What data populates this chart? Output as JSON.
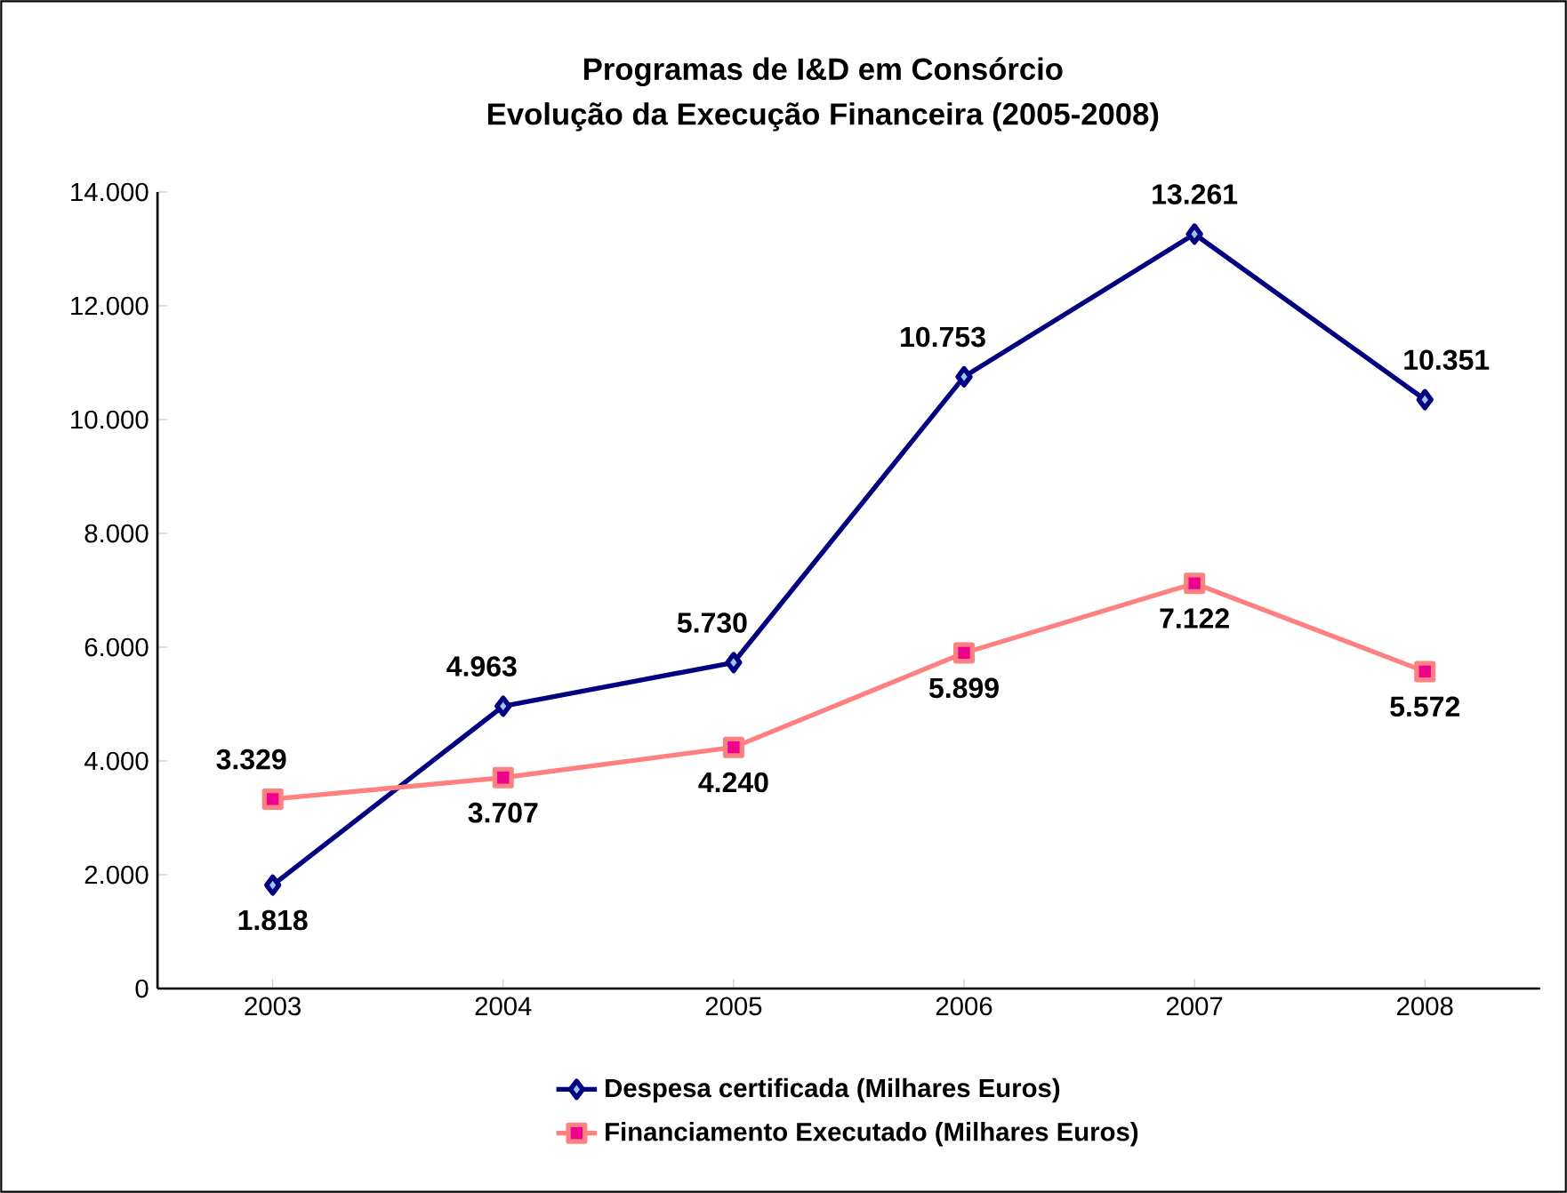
{
  "chart_data": {
    "type": "line",
    "title": "Programas de I&D em Consórcio",
    "subtitle": "Evolução da Execução Financeira (2005-2008)",
    "categories": [
      "2003",
      "2004",
      "2005",
      "2006",
      "2007",
      "2008"
    ],
    "series": [
      {
        "name": "Despesa certificada (Milhares Euros)",
        "color": "#000080",
        "marker": "diamond",
        "values": [
          1818,
          4963,
          5730,
          10753,
          13261,
          10351
        ],
        "value_labels": [
          "1.818",
          "4.963",
          "5.730",
          "10.753",
          "13.261",
          "10.351"
        ]
      },
      {
        "name": "Financiamento Executado (Milhares Euros)",
        "color": "#ff8080",
        "marker": "square",
        "values": [
          3329,
          3707,
          4240,
          5899,
          7122,
          5572
        ],
        "value_labels": [
          "3.329",
          "3.707",
          "4.240",
          "5.899",
          "7.122",
          "5.572"
        ]
      }
    ],
    "ylim": [
      0,
      14000
    ],
    "yticks": [
      {
        "value": 0,
        "label": "0"
      },
      {
        "value": 2000,
        "label": "2.000"
      },
      {
        "value": 4000,
        "label": "4.000"
      },
      {
        "value": 6000,
        "label": "6.000"
      },
      {
        "value": 8000,
        "label": "8.000"
      },
      {
        "value": 10000,
        "label": "10.000"
      },
      {
        "value": 12000,
        "label": "12.000"
      },
      {
        "value": 14000,
        "label": "14.000"
      }
    ],
    "grid": false,
    "legend": "bottom"
  }
}
